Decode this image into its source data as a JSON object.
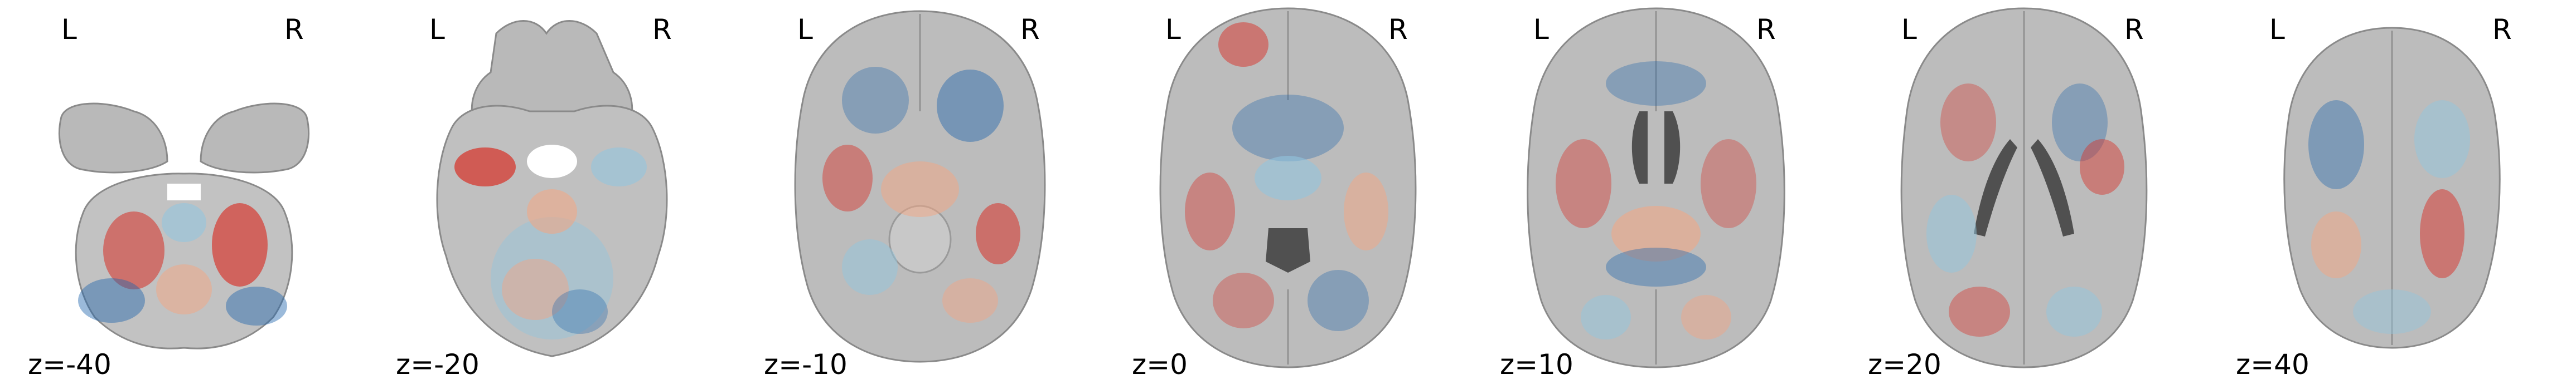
{
  "orientation": {
    "left_label": "L",
    "right_label": "R"
  },
  "slices": [
    {
      "label": "z=-40",
      "z": -40
    },
    {
      "label": "z=-20",
      "z": -20
    },
    {
      "label": "z=-10",
      "z": -10
    },
    {
      "label": "z=0",
      "z": 0
    },
    {
      "label": "z=10",
      "z": 10
    },
    {
      "label": "z=20",
      "z": 20
    },
    {
      "label": "z=40",
      "z": 40
    }
  ],
  "colors": {
    "background": "#ffffff",
    "brain_tissue": "#b9b9b9",
    "brain_edge": "#8a8a8a",
    "ventricle": "#505050",
    "overlay_positive": "#d73027",
    "overlay_positive_light": "#f4a582",
    "overlay_negative": "#2166ac",
    "overlay_negative_light": "#92c5de"
  }
}
